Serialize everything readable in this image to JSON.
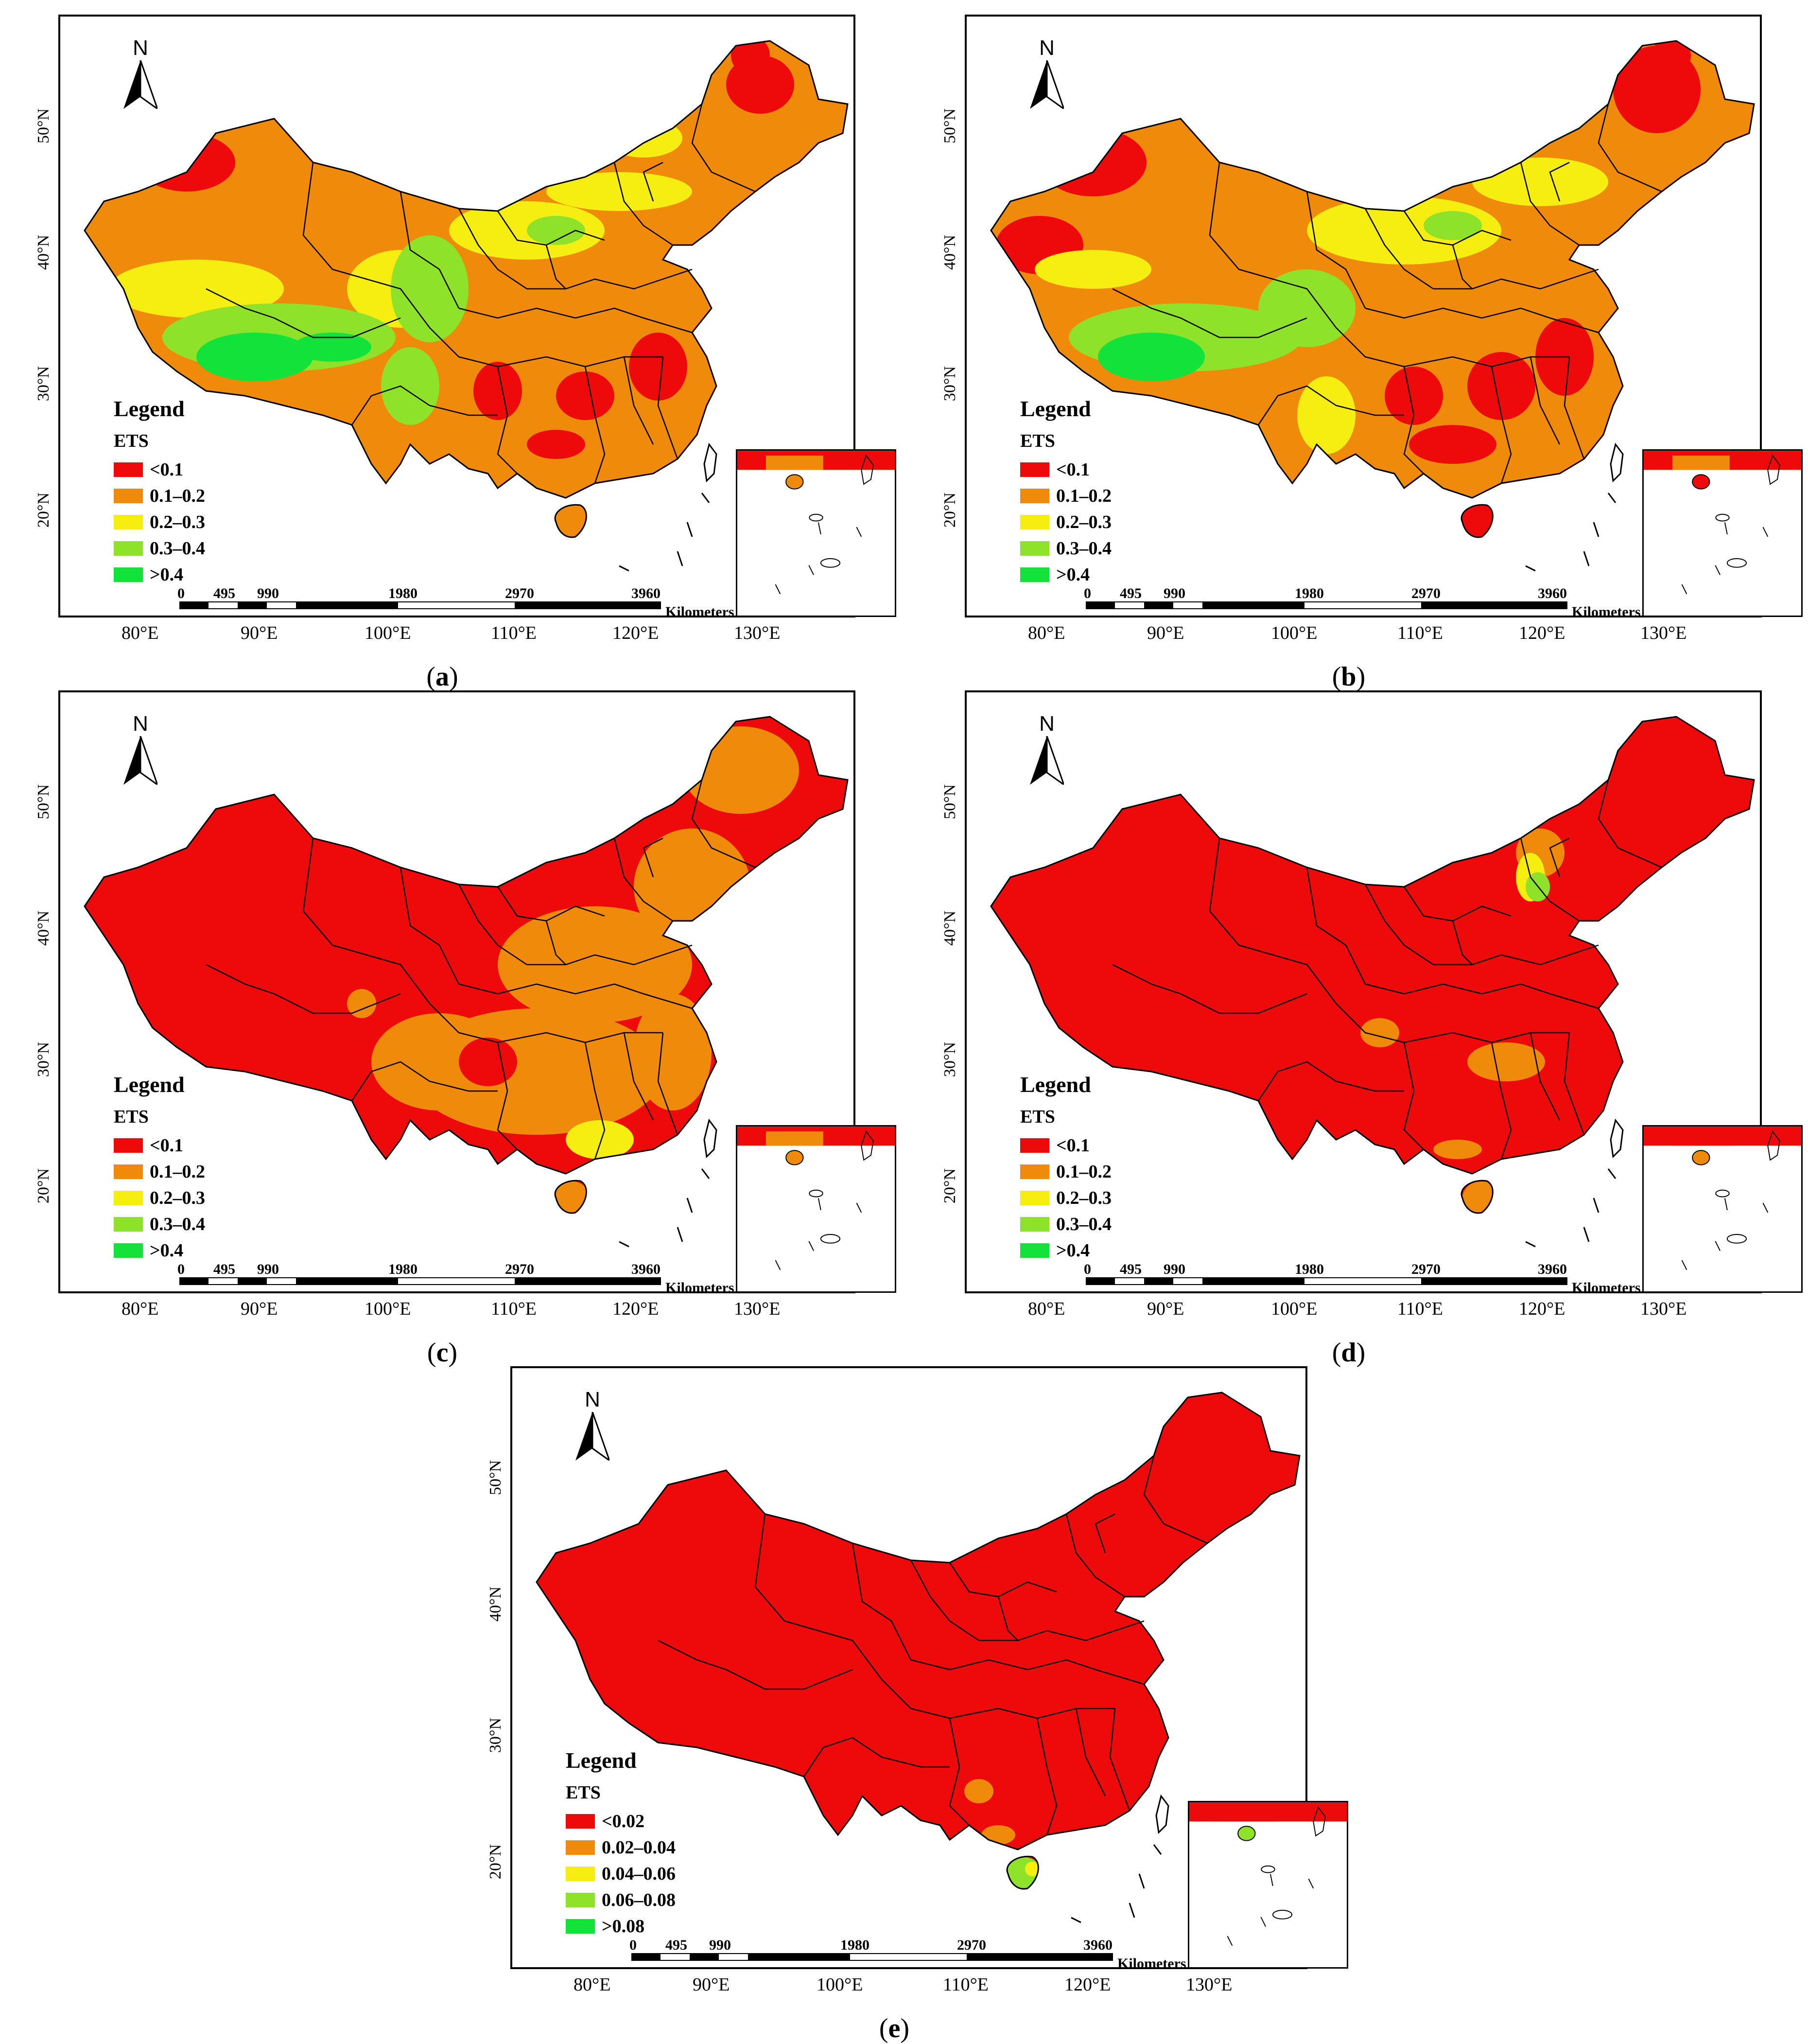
{
  "colors": {
    "class1": "#ee0a0a",
    "class2": "#f08a0a",
    "class3": "#f7ee11",
    "class4": "#8ee32a",
    "class5": "#12e23a",
    "boundary": "#000000"
  },
  "axes": {
    "lat_labels": [
      "50°N",
      "40°N",
      "30°N",
      "20°N"
    ],
    "lon_labels": [
      "80°E",
      "90°E",
      "100°E",
      "110°E",
      "120°E",
      "130°E"
    ]
  },
  "north": {
    "letter": "N"
  },
  "scalebar": {
    "ticks": [
      "0",
      "495",
      "990",
      "1980",
      "2970",
      "3960"
    ],
    "unit": "Kilometers"
  },
  "legend_common": {
    "title": "Legend",
    "variable": "ETS"
  },
  "panels": [
    {
      "id": "a",
      "caption": "a",
      "legend": [
        "<0.1",
        "0.1–0.2",
        "0.2–0.3",
        "0.3–0.4",
        ">0.4"
      ],
      "dominant": "mixed"
    },
    {
      "id": "b",
      "caption": "b",
      "legend": [
        "<0.1",
        "0.1–0.2",
        "0.2–0.3",
        "0.3–0.4",
        ">0.4"
      ],
      "dominant": "mixed"
    },
    {
      "id": "c",
      "caption": "c",
      "legend": [
        "<0.1",
        "0.1–0.2",
        "0.2–0.3",
        "0.3–0.4",
        ">0.4"
      ],
      "dominant": "red-orange"
    },
    {
      "id": "d",
      "caption": "d",
      "legend": [
        "<0.1",
        "0.1–0.2",
        "0.2–0.3",
        "0.3–0.4",
        ">0.4"
      ],
      "dominant": "red"
    },
    {
      "id": "e",
      "caption": "e",
      "legend": [
        "<0.02",
        "0.02–0.04",
        "0.04–0.06",
        "0.06–0.08",
        ">0.08"
      ],
      "dominant": "red"
    }
  ]
}
